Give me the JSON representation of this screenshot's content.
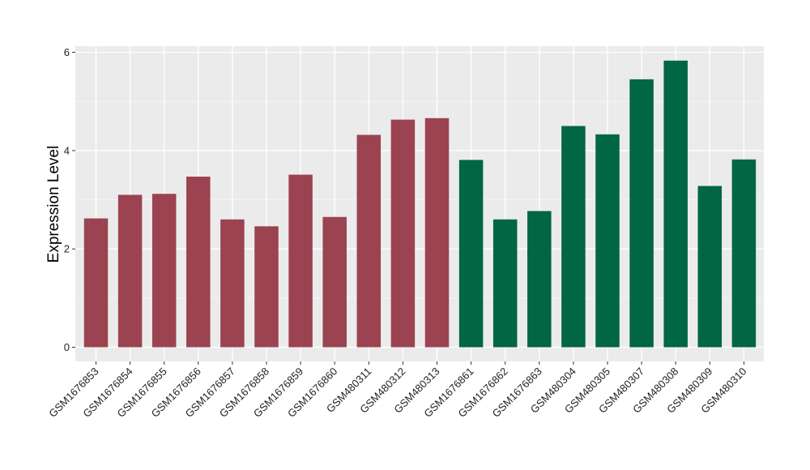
{
  "chart_data": {
    "type": "bar",
    "ylabel": "Expression Level",
    "xlabel": "",
    "ylim": [
      0,
      6
    ],
    "y_ticks": [
      0,
      2,
      4,
      6
    ],
    "grid": true,
    "background": "#EBEBEB",
    "group_colors": {
      "group_a": "#9B4350",
      "group_b": "#006644"
    },
    "categories": [
      "GSM1676853",
      "GSM1676854",
      "GSM1676855",
      "GSM1676856",
      "GSM1676857",
      "GSM1676858",
      "GSM1676859",
      "GSM1676860",
      "GSM480311",
      "GSM480312",
      "GSM480313",
      "GSM1676861",
      "GSM1676862",
      "GSM1676863",
      "GSM480304",
      "GSM480305",
      "GSM480307",
      "GSM480308",
      "GSM480309",
      "GSM480310"
    ],
    "values": [
      2.62,
      3.1,
      3.12,
      3.47,
      2.6,
      2.46,
      3.51,
      2.65,
      4.32,
      4.63,
      4.66,
      3.81,
      2.6,
      2.77,
      4.5,
      4.33,
      5.45,
      5.83,
      3.28,
      3.82
    ],
    "groups": [
      "group_a",
      "group_a",
      "group_a",
      "group_a",
      "group_a",
      "group_a",
      "group_a",
      "group_a",
      "group_a",
      "group_a",
      "group_a",
      "group_b",
      "group_b",
      "group_b",
      "group_b",
      "group_b",
      "group_b",
      "group_b",
      "group_b",
      "group_b"
    ]
  }
}
